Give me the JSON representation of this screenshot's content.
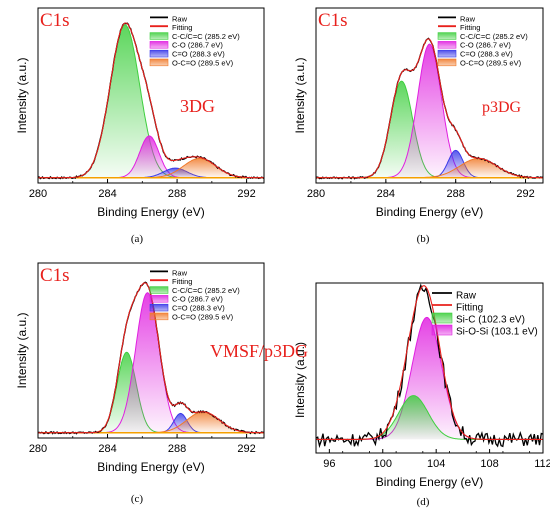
{
  "chart_data": [
    {
      "type": "area",
      "panel_label": "(a)",
      "element_tag": "C1s",
      "sample_label": "3DG",
      "xlabel": "Binding Energy (eV)",
      "ylabel": "Intensity (a.u.)",
      "xlim": [
        280,
        293
      ],
      "xticks": [
        "280",
        "284",
        "288",
        "292"
      ],
      "legend": [
        "Raw",
        "Fitting",
        "C-C/C=C (285.2 eV)",
        "C-O (286.7 eV)",
        "C=O (288.3 eV)",
        "O-C=O (289.5 eV)"
      ],
      "colors": {
        "raw": "#000000",
        "fit": "#e8201c",
        "c1": "#3fcf3f",
        "c2": "#e020e0",
        "c3": "#3a3ae8",
        "c4": "#f07a2a",
        "bg": "#f5a000"
      },
      "peaks": [
        {
          "name": "C-C/C=C",
          "center": 285.0,
          "height": 0.95,
          "fwhm": 2.0
        },
        {
          "name": "C-O",
          "center": 286.4,
          "height": 0.26,
          "fwhm": 1.3
        },
        {
          "name": "C=O",
          "center": 287.9,
          "height": 0.06,
          "fwhm": 1.6
        },
        {
          "name": "O-C=O",
          "center": 289.3,
          "height": 0.12,
          "fwhm": 2.2
        }
      ]
    },
    {
      "type": "area",
      "panel_label": "(b)",
      "element_tag": "C1s",
      "sample_label": "p3DG",
      "xlabel": "Binding Energy (eV)",
      "ylabel": "Intensity (a.u.)",
      "xlim": [
        280,
        293
      ],
      "xticks": [
        "280",
        "284",
        "288",
        "292"
      ],
      "legend": [
        "Raw",
        "Fitting",
        "C-C/C=C (285.2 eV)",
        "C-O (286.7 eV)",
        "C=O (288.3 eV)",
        "O-C=O (289.5 eV)"
      ],
      "colors": {
        "raw": "#000000",
        "fit": "#e8201c",
        "c1": "#3fcf3f",
        "c2": "#e020e0",
        "c3": "#3a3ae8",
        "c4": "#f07a2a",
        "bg": "#f5a000"
      },
      "peaks": [
        {
          "name": "C-C/C=C",
          "center": 284.9,
          "height": 0.6,
          "fwhm": 1.5
        },
        {
          "name": "C-O",
          "center": 286.5,
          "height": 0.83,
          "fwhm": 1.6
        },
        {
          "name": "C=O",
          "center": 288.0,
          "height": 0.17,
          "fwhm": 1.0
        },
        {
          "name": "O-C=O",
          "center": 289.3,
          "height": 0.12,
          "fwhm": 2.5
        }
      ]
    },
    {
      "type": "area",
      "panel_label": "(c)",
      "element_tag": "C1s",
      "sample_label": "VMSF/p3DG",
      "xlabel": "Binding Energy (eV)",
      "ylabel": "Intensity (a.u.)",
      "xlim": [
        280,
        293
      ],
      "xticks": [
        "280",
        "284",
        "288",
        "292"
      ],
      "legend": [
        "Raw",
        "Fitting",
        "C-C/C=C (285.2 eV)",
        "C-O (286.7 eV)",
        "C=O (288.3 eV)",
        "O-C=O (289.5 eV)"
      ],
      "colors": {
        "raw": "#000000",
        "fit": "#e8201c",
        "c1": "#3fcf3f",
        "c2": "#e020e0",
        "c3": "#3a3ae8",
        "c4": "#f07a2a",
        "bg": "#f5a000"
      },
      "peaks": [
        {
          "name": "C-C/C=C",
          "center": 285.1,
          "height": 0.5,
          "fwhm": 1.3
        },
        {
          "name": "C-O",
          "center": 286.3,
          "height": 0.87,
          "fwhm": 1.6
        },
        {
          "name": "C=O",
          "center": 288.2,
          "height": 0.12,
          "fwhm": 0.9
        },
        {
          "name": "O-C=O",
          "center": 289.5,
          "height": 0.13,
          "fwhm": 2.2
        }
      ]
    },
    {
      "type": "area",
      "panel_label": "(d)",
      "xlabel": "Binding Energy (eV)",
      "ylabel": "Intensity (a.u.)",
      "xlim": [
        95,
        112
      ],
      "xticks": [
        "96",
        "100",
        "104",
        "108",
        "112"
      ],
      "legend": [
        "Raw",
        "Fitting",
        "Si-C (102.3 eV)",
        "Si-O-Si (103.1 eV)"
      ],
      "colors": {
        "raw": "#000000",
        "fit": "#e8201c",
        "c1": "#3fcf3f",
        "c2": "#e020e0"
      },
      "peaks": [
        {
          "name": "Si-O-Si",
          "center": 103.3,
          "height": 0.78,
          "fwhm": 2.6
        },
        {
          "name": "Si-C",
          "center": 102.3,
          "height": 0.28,
          "fwhm": 2.6
        }
      ]
    }
  ]
}
